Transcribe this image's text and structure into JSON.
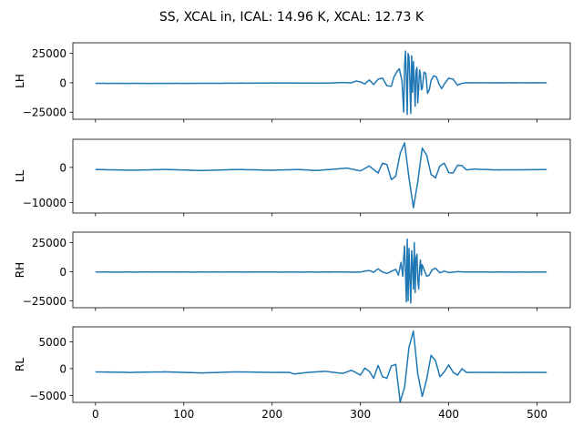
{
  "figure": {
    "title": "SS, XCAL in, ICAL: 14.96 K, XCAL: 12.73 K"
  },
  "chart_data": {
    "type": "line",
    "title": "SS, XCAL in, ICAL: 14.96 K, XCAL: 12.73 K",
    "layout": "4 vertically stacked subplots, shared x axis",
    "shared_x": {
      "xlim": [
        -25.6,
        537.6
      ],
      "xticks": [
        0,
        100,
        200,
        300,
        400,
        500
      ],
      "xtick_labels": [
        "0",
        "100",
        "200",
        "300",
        "400",
        "500"
      ],
      "tick_labels_on": "bottom subplot only"
    },
    "line_color": "#1f77b4",
    "grid": false,
    "legend": "none",
    "panels": [
      {
        "ylabel": "LH",
        "ylim": [
          -31000,
          34000
        ],
        "yticks": [
          -25000,
          0,
          25000
        ],
        "ytick_labels": [
          "−25000",
          "0",
          "25000"
        ],
        "baseline": -200,
        "x": [
          0,
          100,
          200,
          260,
          280,
          290,
          295,
          300,
          305,
          310,
          315,
          320,
          325,
          330,
          335,
          338,
          341,
          344,
          347,
          349,
          350,
          351,
          352,
          353,
          354,
          355,
          356,
          357,
          358,
          359,
          360,
          361,
          362,
          363,
          364,
          365,
          366,
          367,
          368,
          369,
          370,
          372,
          374,
          376,
          378,
          380,
          383,
          386,
          389,
          392,
          395,
          400,
          405,
          410,
          415,
          420,
          430,
          450,
          480,
          511
        ],
        "y": [
          -500,
          -500,
          -200,
          -300,
          200,
          0,
          1500,
          800,
          -1000,
          2500,
          -1500,
          3000,
          4000,
          -2500,
          -3000,
          5000,
          9000,
          12000,
          2000,
          -25000,
          14000,
          27000,
          5000,
          -27000,
          25000,
          22000,
          0,
          -26000,
          23000,
          -8000,
          18000,
          2000,
          -20000,
          10000,
          13000,
          -17000,
          -4000,
          11000,
          7000,
          -6000,
          -5000,
          9000,
          8000,
          -9000,
          -6000,
          2000,
          6000,
          5000,
          -1000,
          -5000,
          -1000,
          4000,
          3000,
          -2000,
          -500,
          0,
          0,
          0,
          0,
          0
        ]
      },
      {
        "ylabel": "LL",
        "ylim": [
          -13000,
          8000
        ],
        "yticks": [
          -10000,
          0
        ],
        "ytick_labels": [
          "−10000",
          "0"
        ],
        "baseline": -700,
        "x": [
          0,
          40,
          80,
          120,
          160,
          200,
          230,
          250,
          270,
          285,
          300,
          310,
          320,
          325,
          330,
          335,
          340,
          345,
          350,
          355,
          360,
          365,
          370,
          375,
          380,
          385,
          390,
          395,
          400,
          405,
          410,
          415,
          420,
          430,
          450,
          480,
          511
        ],
        "y": [
          -600,
          -800,
          -600,
          -900,
          -600,
          -800,
          -600,
          -900,
          -500,
          -200,
          -1000,
          400,
          -1600,
          1200,
          800,
          -3500,
          -2500,
          4000,
          7000,
          -3000,
          -11500,
          -4000,
          5500,
          3500,
          -2000,
          -3000,
          400,
          1200,
          -1500,
          -1600,
          600,
          500,
          -700,
          -500,
          -700,
          -700,
          -600
        ]
      },
      {
        "ylabel": "RH",
        "ylim": [
          -31000,
          34000
        ],
        "yticks": [
          -25000,
          0,
          25000
        ],
        "ytick_labels": [
          "−25000",
          "0",
          "25000"
        ],
        "baseline": -200,
        "x": [
          0,
          100,
          200,
          280,
          290,
          300,
          305,
          310,
          315,
          320,
          325,
          330,
          335,
          340,
          343,
          346,
          348,
          349,
          350,
          351,
          352,
          353,
          354,
          355,
          356,
          357,
          358,
          359,
          360,
          361,
          362,
          363,
          364,
          365,
          366,
          367,
          368,
          369,
          370,
          372,
          375,
          378,
          381,
          385,
          390,
          395,
          400,
          410,
          420,
          450,
          511
        ],
        "y": [
          -300,
          -300,
          -300,
          -300,
          -400,
          -300,
          500,
          1000,
          -500,
          2500,
          -300,
          -1500,
          300,
          2000,
          -3000,
          8000,
          -4000,
          12000,
          22000,
          0,
          -26000,
          28000,
          -25000,
          20000,
          -5000,
          -27000,
          18000,
          5000,
          -15000,
          25000,
          -18000,
          12000,
          15000,
          -8000,
          -15000,
          3000,
          10000,
          -3000,
          6000,
          2000,
          -4000,
          -3000,
          1500,
          3000,
          -1000,
          500,
          -800,
          0,
          -300,
          -300,
          -300
        ]
      },
      {
        "ylabel": "RL",
        "ylim": [
          -6300,
          7800
        ],
        "yticks": [
          -5000,
          0,
          5000
        ],
        "ytick_labels": [
          "−5000",
          "0",
          "5000"
        ],
        "baseline": -700,
        "x": [
          0,
          40,
          80,
          120,
          160,
          200,
          220,
          225,
          240,
          260,
          280,
          290,
          300,
          305,
          310,
          315,
          320,
          325,
          330,
          335,
          340,
          345,
          350,
          355,
          360,
          365,
          370,
          375,
          380,
          385,
          390,
          395,
          400,
          405,
          410,
          415,
          420,
          430,
          450,
          480,
          511
        ],
        "y": [
          -600,
          -700,
          -600,
          -800,
          -600,
          -700,
          -700,
          -1000,
          -700,
          -500,
          -900,
          -300,
          -1200,
          100,
          -500,
          -1800,
          600,
          -1500,
          -1800,
          500,
          800,
          -6200,
          -3500,
          4000,
          7000,
          -1000,
          -5200,
          -2000,
          2500,
          1500,
          -1500,
          -600,
          700,
          -700,
          -1200,
          0,
          -700,
          -700,
          -700,
          -700,
          -700
        ]
      }
    ]
  }
}
